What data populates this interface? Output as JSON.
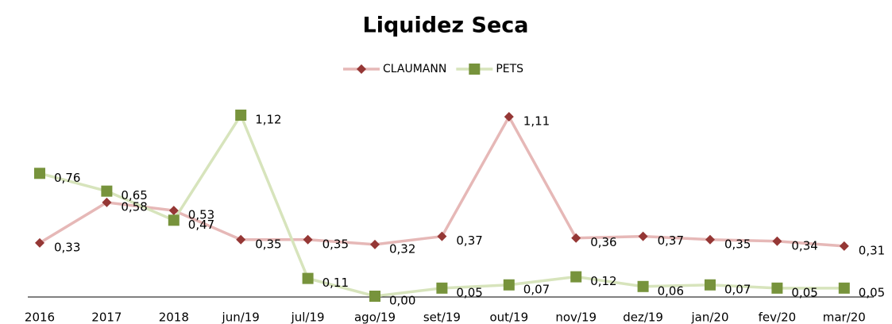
{
  "chart_data": {
    "type": "line",
    "title": "Liquidez Seca",
    "categories": [
      "2016",
      "2017",
      "2018",
      "jun/19",
      "jul/19",
      "ago/19",
      "set/19",
      "out/19",
      "nov/19",
      "dez/19",
      "jan/20",
      "fev/20",
      "mar/20"
    ],
    "series": [
      {
        "name": "CLAUMANN",
        "color": "#e6b8b7",
        "marker_color": "#953735",
        "marker": "diamond",
        "values": [
          0.33,
          0.58,
          0.53,
          0.35,
          0.35,
          0.32,
          0.37,
          1.11,
          0.36,
          0.37,
          0.35,
          0.34,
          0.31
        ],
        "value_labels": [
          "0,33",
          "0,58",
          "0,53",
          "0,35",
          "0,35",
          "0,32",
          "0,37",
          "1,11",
          "0,36",
          "0,37",
          "0,35",
          "0,34",
          "0,31"
        ]
      },
      {
        "name": "PETS",
        "color": "#d7e4bc",
        "marker_color": "#77933c",
        "marker": "square",
        "values": [
          0.76,
          0.65,
          0.47,
          1.12,
          0.11,
          0.0,
          0.05,
          0.07,
          0.12,
          0.06,
          0.07,
          0.05,
          0.05
        ],
        "value_labels": [
          "0,76",
          "0,65",
          "0,47",
          "1,12",
          "0,11",
          "0,00",
          "0,05",
          "0,07",
          "0,12",
          "0,06",
          "0,07",
          "0,05",
          "0,05"
        ]
      }
    ],
    "legend": "top"
  }
}
